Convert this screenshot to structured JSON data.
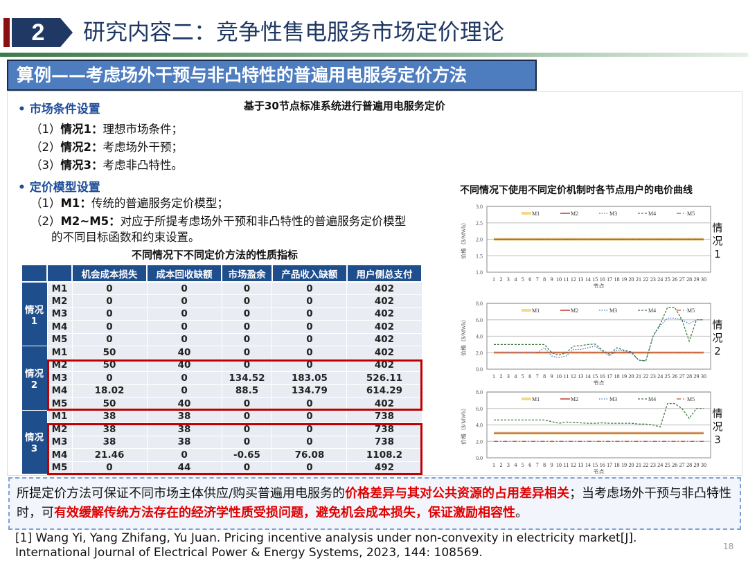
{
  "header": {
    "section_number": "2",
    "title": "研究内容二：竞争性售电服务市场定价理论",
    "subtitle": "算例——考虑场外干预与非凸特性的普遍用电服务定价方法",
    "accent": "#8b0e12",
    "navy": "#1f3864"
  },
  "left": {
    "market_heading": "市场条件设置",
    "market_items": [
      {
        "n": "（1）",
        "k": "情况1：",
        "t": "理想市场条件；"
      },
      {
        "n": "（2）",
        "k": "情况2：",
        "t": "考虑场外干预；"
      },
      {
        "n": "（3）",
        "k": "情况3：",
        "t": "考虑非凸特性。"
      }
    ],
    "model_heading": "定价模型设置",
    "model_items": [
      {
        "n": "（1）",
        "k": "M1：",
        "t": "传统的普遍服务定价模型；"
      },
      {
        "n": "（2）",
        "k": "M2~M5：",
        "t": "对应于所提考虑场外干预和非凸特性的普遍服务定价模型"
      }
    ],
    "model_cont": "的不同目标函数和约束设置。"
  },
  "table": {
    "title": "不同情况下不同定价方法的性质指标",
    "columns": [
      "机会成本损失",
      "成本回收缺额",
      "市场盈余",
      "产品收入缺额",
      "用户侧总支付"
    ],
    "groups": [
      {
        "label": "情况1",
        "rows": [
          [
            "M1",
            "0",
            "0",
            "0",
            "0",
            "402"
          ],
          [
            "M2",
            "0",
            "0",
            "0",
            "0",
            "402"
          ],
          [
            "M3",
            "0",
            "0",
            "0",
            "0",
            "402"
          ],
          [
            "M4",
            "0",
            "0",
            "0",
            "0",
            "402"
          ],
          [
            "M5",
            "0",
            "0",
            "0",
            "0",
            "402"
          ]
        ]
      },
      {
        "label": "情况2",
        "rows": [
          [
            "M1",
            "50",
            "40",
            "0",
            "0",
            "402"
          ],
          [
            "M2",
            "50",
            "40",
            "0",
            "0",
            "402"
          ],
          [
            "M3",
            "0",
            "0",
            "134.52",
            "183.05",
            "526.11"
          ],
          [
            "M4",
            "18.02",
            "0",
            "88.5",
            "134.79",
            "614.29"
          ],
          [
            "M5",
            "50",
            "40",
            "0",
            "0",
            "402"
          ]
        ]
      },
      {
        "label": "情况3",
        "rows": [
          [
            "M1",
            "38",
            "38",
            "0",
            "0",
            "738"
          ],
          [
            "M2",
            "38",
            "38",
            "0",
            "0",
            "738"
          ],
          [
            "M3",
            "38",
            "38",
            "0",
            "0",
            "738"
          ],
          [
            "M4",
            "21.46",
            "0",
            "-0.65",
            "76.08",
            "1108.2"
          ],
          [
            "M5",
            "0",
            "44",
            "0",
            "0",
            "492"
          ]
        ]
      }
    ],
    "highlight_color": "#c00000"
  },
  "charts": {
    "top_title": "基于30节点标准系统进行普遍用电服务定价",
    "title": "不同情况下使用不同定价机制时各节点用户的电价曲线"
  },
  "chart_data": [
    {
      "type": "line",
      "side_label": "情况1",
      "ylabel": "价格（$/MWh）",
      "xlabel": "节点",
      "ylim": [
        1.0,
        3.0
      ],
      "yticks": [
        "1.0",
        "1.5",
        "2.0",
        "2.5",
        "3.0"
      ],
      "x": [
        1,
        2,
        3,
        4,
        5,
        6,
        7,
        8,
        9,
        10,
        11,
        12,
        13,
        14,
        15,
        16,
        17,
        18,
        19,
        20,
        21,
        22,
        23,
        24,
        25,
        26,
        27,
        28,
        29,
        30
      ],
      "grid": true,
      "legend": "top",
      "series": [
        {
          "name": "M1",
          "color": "#f2d98a",
          "style": "thick",
          "values": [
            2,
            2,
            2,
            2,
            2,
            2,
            2,
            2,
            2,
            2,
            2,
            2,
            2,
            2,
            2,
            2,
            2,
            2,
            2,
            2,
            2,
            2,
            2,
            2,
            2,
            2,
            2,
            2,
            2,
            2
          ]
        },
        {
          "name": "M2",
          "color": "#c0392b",
          "style": "solid",
          "values": [
            2,
            2,
            2,
            2,
            2,
            2,
            2,
            2,
            2,
            2,
            2,
            2,
            2,
            2,
            2,
            2,
            2,
            2,
            2,
            2,
            2,
            2,
            2,
            2,
            2,
            2,
            2,
            2,
            2,
            2
          ]
        },
        {
          "name": "M3",
          "color": "#4a6fd0",
          "style": "dot",
          "values": [
            2,
            2,
            2,
            2,
            2,
            2,
            2,
            2,
            2,
            2,
            2,
            2,
            2,
            2,
            2,
            2,
            2,
            2,
            2,
            2,
            2,
            2,
            2,
            2,
            2,
            2,
            2,
            2,
            2,
            2
          ]
        },
        {
          "name": "M4",
          "color": "#3d7a3d",
          "style": "dash",
          "values": [
            2,
            2,
            2,
            2,
            2,
            2,
            2,
            2,
            2,
            2,
            2,
            2,
            2,
            2,
            2,
            2,
            2,
            2,
            2,
            2,
            2,
            2,
            2,
            2,
            2,
            2,
            2,
            2,
            2,
            2
          ]
        },
        {
          "name": "M5",
          "color": "#b5533a",
          "style": "dashdot",
          "values": [
            2,
            2,
            2,
            2,
            2,
            2,
            2,
            2,
            2,
            2,
            2,
            2,
            2,
            2,
            2,
            2,
            2,
            2,
            2,
            2,
            2,
            2,
            2,
            2,
            2,
            2,
            2,
            2,
            2,
            2
          ]
        }
      ]
    },
    {
      "type": "line",
      "side_label": "情况2",
      "ylabel": "价格（$/MWh）",
      "xlabel": "节点",
      "ylim": [
        0.0,
        8.0
      ],
      "yticks": [
        "0.0",
        "2.0",
        "4.0",
        "6.0",
        "8.0"
      ],
      "x": [
        1,
        2,
        3,
        4,
        5,
        6,
        7,
        8,
        9,
        10,
        11,
        12,
        13,
        14,
        15,
        16,
        17,
        18,
        19,
        20,
        21,
        22,
        23,
        24,
        25,
        26,
        27,
        28,
        29,
        30
      ],
      "grid": true,
      "legend": "top",
      "series": [
        {
          "name": "M1",
          "color": "#f2d98a",
          "style": "thick",
          "values": [
            2,
            2,
            2,
            2,
            2,
            2,
            2,
            2,
            2,
            2,
            2,
            2,
            2,
            2,
            2,
            2,
            2,
            2,
            2,
            2,
            2,
            2,
            2,
            2,
            2,
            2,
            2,
            2,
            2,
            2
          ]
        },
        {
          "name": "M2",
          "color": "#c0392b",
          "style": "solid",
          "values": [
            2,
            2,
            2,
            2,
            2,
            2,
            2,
            2,
            2,
            2,
            2,
            2,
            2,
            2,
            2,
            2,
            2,
            2,
            2,
            2,
            2,
            2,
            2,
            2,
            2,
            2,
            2,
            2,
            2,
            2
          ]
        },
        {
          "name": "M3",
          "color": "#4a6fd0",
          "style": "dot",
          "values": [
            2,
            2,
            2,
            2,
            2,
            2,
            2,
            2.6,
            1.6,
            1.4,
            1.6,
            2.4,
            2.4,
            2.6,
            2.8,
            2.2,
            1.6,
            2.3,
            2.2,
            2.0,
            1.1,
            1.0,
            4.0,
            5.3,
            6.2,
            6.2,
            6.0,
            5.5,
            6.0,
            6.0
          ]
        },
        {
          "name": "M4",
          "color": "#3d7a3d",
          "style": "dash",
          "values": [
            3,
            3,
            3,
            3,
            3,
            3,
            3,
            3,
            2,
            1.7,
            2,
            2.8,
            2.85,
            3,
            3.05,
            2.3,
            1.8,
            2.6,
            2.3,
            2.1,
            1.1,
            1.0,
            4.0,
            5.5,
            7.5,
            7.5,
            6.0,
            3.4,
            6.0,
            6.0
          ]
        },
        {
          "name": "M5",
          "color": "#b5533a",
          "style": "dashdot",
          "values": [
            2,
            2,
            2,
            2,
            2,
            2,
            2,
            2,
            2,
            2,
            2,
            2,
            2,
            2,
            2,
            2,
            2,
            2,
            2,
            2,
            2,
            2,
            2,
            2,
            2,
            2,
            2,
            2,
            2,
            2
          ]
        }
      ]
    },
    {
      "type": "line",
      "side_label": "情况3",
      "ylabel": "价格（$/MWh）",
      "xlabel": "节点",
      "ylim": [
        0.0,
        8.0
      ],
      "yticks": [
        "0.0",
        "2.0",
        "4.0",
        "6.0",
        "8.0"
      ],
      "x": [
        1,
        2,
        3,
        4,
        5,
        6,
        7,
        8,
        9,
        10,
        11,
        12,
        13,
        14,
        15,
        16,
        17,
        18,
        19,
        20,
        21,
        22,
        23,
        24,
        25,
        26,
        27,
        28,
        29,
        30
      ],
      "grid": true,
      "legend": "top",
      "series": [
        {
          "name": "M1",
          "color": "#f2d98a",
          "style": "thick",
          "values": [
            3,
            3,
            3,
            3,
            3,
            3,
            3,
            3,
            3,
            3,
            3,
            3,
            3,
            3,
            3,
            3,
            3,
            3,
            3,
            3,
            3,
            3,
            3,
            3,
            3,
            3,
            3,
            3,
            3,
            3
          ]
        },
        {
          "name": "M2",
          "color": "#c0392b",
          "style": "solid",
          "values": [
            3,
            3,
            3,
            3,
            3,
            3,
            3,
            3,
            3,
            3,
            3,
            3,
            3,
            3,
            3,
            3,
            3,
            3,
            3,
            3,
            3,
            3,
            3,
            3,
            3,
            3,
            3,
            3,
            3,
            3
          ]
        },
        {
          "name": "M3",
          "color": "#4a6fd0",
          "style": "dot",
          "values": [
            3,
            3,
            3,
            3,
            3,
            3,
            3,
            3,
            3,
            3,
            3,
            3,
            3,
            3,
            3,
            3,
            3,
            3,
            3,
            3,
            3,
            3,
            3,
            3,
            3,
            3,
            3,
            3,
            3,
            3
          ]
        },
        {
          "name": "M4",
          "color": "#3d7a3d",
          "style": "dash",
          "values": [
            4.6,
            4.6,
            4.6,
            4.6,
            4.6,
            4.6,
            4.6,
            4.6,
            4.4,
            4.2,
            4.35,
            4.3,
            4.25,
            4.2,
            4.2,
            4.25,
            4.2,
            4.2,
            4.2,
            4.2,
            4.1,
            4.1,
            4.0,
            3.75,
            6.6,
            6.6,
            6.0,
            4.8,
            6.0,
            6.0
          ]
        },
        {
          "name": "M5",
          "color": "#b5533a",
          "style": "dashdot",
          "values": [
            2,
            2,
            2,
            2,
            2,
            2,
            2,
            2,
            2,
            2,
            2,
            2,
            2,
            2,
            2,
            2,
            2,
            2,
            2,
            2,
            2,
            2,
            2,
            2,
            2,
            2,
            2,
            2,
            2,
            2
          ]
        }
      ]
    }
  ],
  "conclusion": {
    "p1": "所提定价方法可保证不同市场主体供应/购买普遍用电服务的",
    "r1": "价格差异与其对公共资源的占用差异相关",
    "p2": "；当考虑场外干预与非凸特性时，可",
    "r2": "有效缓解传统方法存在的经济学性质受损问题，避免机会成本损失，保证激励相容性",
    "p3": "。"
  },
  "reference": "[1]  Wang Yi, Yang Zhifang, Yu Juan. Pricing incentive analysis under non-convexity in electricity market[J]. International Journal of Electrical Power & Energy Systems, 2023, 144: 108569.",
  "page_number": "18"
}
